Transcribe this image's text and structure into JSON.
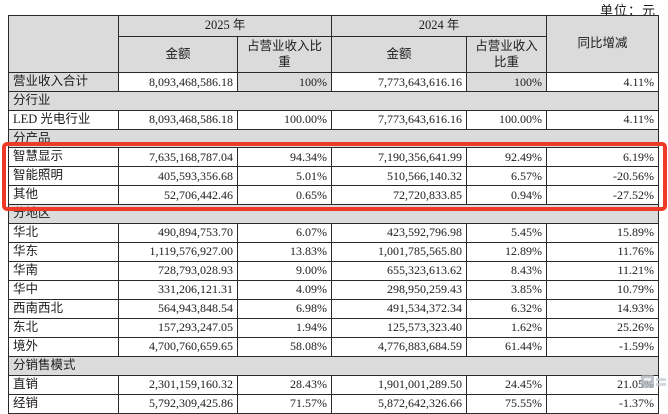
{
  "unit_label": "单位：元",
  "colors": {
    "grid": "#2a2a2a",
    "shaded_bg": "#dbdbdb",
    "highlight_border": "#ee3a26"
  },
  "table": {
    "header": {
      "year_2025": "2025 年",
      "year_2024": "2024 年",
      "amount_2025": "金额",
      "pct_2025": "占营业收入比重",
      "amount_2024": "金额",
      "pct_2024": "占营业收入比重",
      "yoy": "同比增减"
    },
    "rows": [
      {
        "type": "data",
        "shaded": true,
        "label": "营业收入合计",
        "a25": "8,093,468,586.18",
        "p25": "100%",
        "a24": "7,773,643,616.16",
        "p24": "100%",
        "yoy": "4.11%"
      },
      {
        "type": "section",
        "label": "分行业"
      },
      {
        "type": "data",
        "label": "LED 光电行业",
        "a25": "8,093,468,586.18",
        "p25": "100.00%",
        "a24": "7,773,643,616.16",
        "p24": "100.00%",
        "yoy": "4.11%"
      },
      {
        "type": "section",
        "label": "分产品"
      },
      {
        "type": "data",
        "highlight": true,
        "label": "智慧显示",
        "a25": "7,635,168,787.04",
        "p25": "94.34%",
        "a24": "7,190,356,641.99",
        "p24": "92.49%",
        "yoy": "6.19%"
      },
      {
        "type": "data",
        "highlight": true,
        "label": "智能照明",
        "a25": "405,593,356.68",
        "p25": "5.01%",
        "a24": "510,566,140.32",
        "p24": "6.57%",
        "yoy": "-20.56%"
      },
      {
        "type": "data",
        "highlight": true,
        "label": "其他",
        "a25": "52,706,442.46",
        "p25": "0.65%",
        "a24": "72,720,833.85",
        "p24": "0.94%",
        "yoy": "-27.52%"
      },
      {
        "type": "section",
        "label": "分地区"
      },
      {
        "type": "data",
        "label": "华北",
        "a25": "490,894,753.70",
        "p25": "6.07%",
        "a24": "423,592,796.98",
        "p24": "5.45%",
        "yoy": "15.89%"
      },
      {
        "type": "data",
        "label": "华东",
        "a25": "1,119,576,927.00",
        "p25": "13.83%",
        "a24": "1,001,785,565.80",
        "p24": "12.89%",
        "yoy": "11.76%"
      },
      {
        "type": "data",
        "label": "华南",
        "a25": "728,793,028.93",
        "p25": "9.00%",
        "a24": "655,323,613.62",
        "p24": "8.43%",
        "yoy": "11.21%"
      },
      {
        "type": "data",
        "label": "华中",
        "a25": "331,206,121.31",
        "p25": "4.09%",
        "a24": "298,950,259.43",
        "p24": "3.85%",
        "yoy": "10.79%"
      },
      {
        "type": "data",
        "label": "西南西北",
        "a25": "564,943,848.54",
        "p25": "6.98%",
        "a24": "491,534,372.34",
        "p24": "6.32%",
        "yoy": "14.93%"
      },
      {
        "type": "data",
        "label": "东北",
        "a25": "157,293,247.05",
        "p25": "1.94%",
        "a24": "125,573,323.40",
        "p24": "1.62%",
        "yoy": "25.26%"
      },
      {
        "type": "data",
        "label": "境外",
        "a25": "4,700,760,659.65",
        "p25": "58.08%",
        "a24": "4,776,883,684.59",
        "p24": "61.44%",
        "yoy": "-1.59%"
      },
      {
        "type": "section",
        "label": "分销售模式"
      },
      {
        "type": "data",
        "label": "直销",
        "a25": "2,301,159,160.32",
        "p25": "28.43%",
        "a24": "1,901,001,289.50",
        "p24": "24.45%",
        "yoy": "21.05%"
      },
      {
        "type": "data",
        "label": "经销",
        "a25": "5,792,309,425.86",
        "p25": "71.57%",
        "a24": "5,872,642,326.66",
        "p24": "75.55%",
        "yoy": "-1.37%"
      }
    ]
  }
}
